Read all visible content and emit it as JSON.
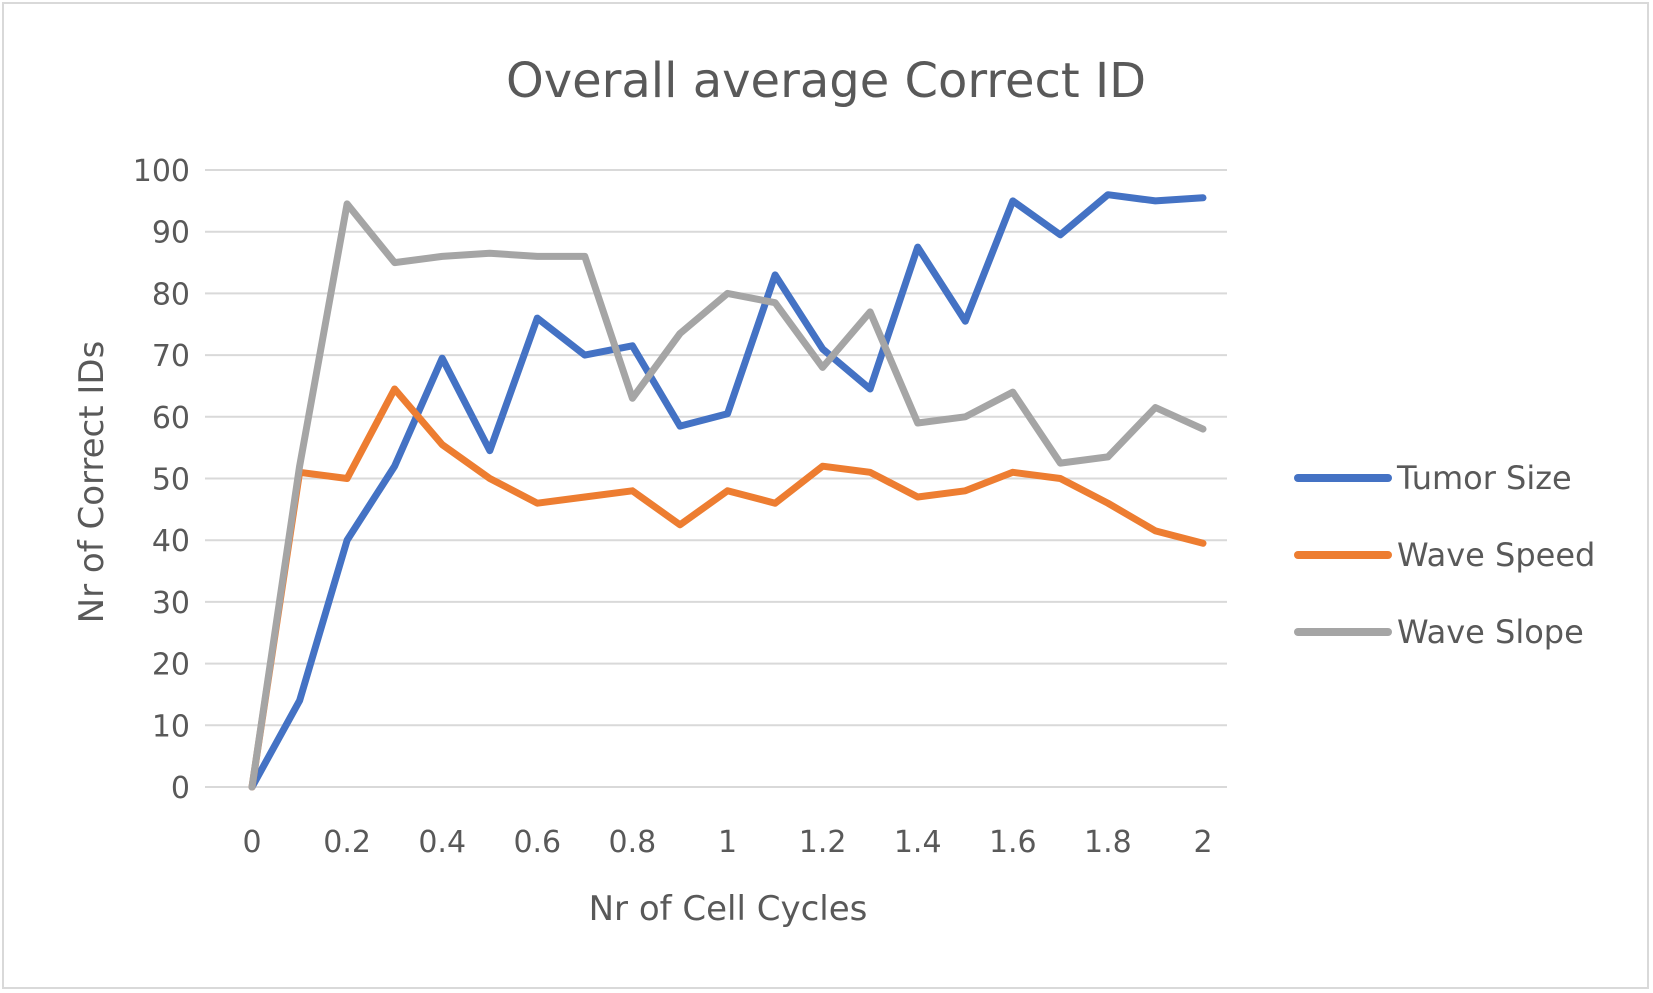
{
  "chart_data": {
    "type": "line",
    "title": "Overall average Correct ID",
    "xlabel": "Nr of Cell Cycles",
    "ylabel": "Nr of Correct IDs",
    "xlim": [
      0,
      2
    ],
    "ylim": [
      0,
      100
    ],
    "x_ticks": [
      "0",
      "0.2",
      "0.4",
      "0.6",
      "0.8",
      "1",
      "1.2",
      "1.4",
      "1.6",
      "1.8",
      "2"
    ],
    "y_ticks": [
      "0",
      "10",
      "20",
      "30",
      "40",
      "50",
      "60",
      "70",
      "80",
      "90",
      "100"
    ],
    "x": [
      0,
      0.1,
      0.2,
      0.3,
      0.4,
      0.5,
      0.6,
      0.7,
      0.8,
      0.9,
      1.0,
      1.1,
      1.2,
      1.3,
      1.4,
      1.5,
      1.6,
      1.7,
      1.8,
      1.9,
      2.0
    ],
    "grid": true,
    "legend_position": "right",
    "series": [
      {
        "name": "Tumor Size",
        "color": "#4472c4",
        "values": [
          0,
          14,
          40,
          52,
          69.5,
          54.5,
          76,
          70,
          71.5,
          58.5,
          60.5,
          83,
          71,
          64.5,
          87.5,
          75.5,
          95,
          89.5,
          96,
          95,
          95.5
        ]
      },
      {
        "name": "Wave Speed",
        "color": "#ed7d31",
        "values": [
          0,
          51,
          50,
          64.5,
          55.5,
          50,
          46,
          47,
          48,
          42.5,
          48,
          46,
          52,
          51,
          47,
          48,
          51,
          50,
          46,
          41.5,
          39.5
        ]
      },
      {
        "name": "Wave Slope",
        "color": "#a5a5a5",
        "values": [
          0,
          52,
          94.5,
          85,
          86,
          86.5,
          86,
          86,
          63,
          73.5,
          80,
          78.5,
          68,
          77,
          59,
          60,
          64,
          52.5,
          53.5,
          61.5,
          58
        ]
      }
    ]
  }
}
